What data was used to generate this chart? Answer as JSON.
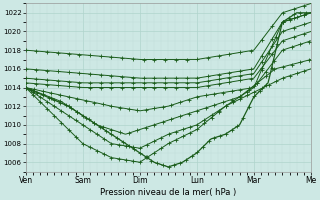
{
  "xlabel": "Pression niveau de la mer( hPa )",
  "ylim": [
    1005,
    1023
  ],
  "yticks": [
    1006,
    1008,
    1010,
    1012,
    1014,
    1016,
    1018,
    1020,
    1022
  ],
  "day_labels": [
    "Ven",
    "Sam",
    "Dim",
    "Lun",
    "Mar",
    "Me"
  ],
  "day_positions": [
    0,
    8,
    16,
    24,
    32,
    40
  ],
  "background_color": "#cde8e4",
  "grid_color_major": "#b0d4cc",
  "grid_color_minor": "#c0ddd8",
  "line_color": "#1a5c1a",
  "lines": [
    {
      "pts_x": [
        0,
        8,
        16,
        24,
        32,
        36,
        40
      ],
      "pts_y": [
        1018,
        1017.5,
        1017,
        1017,
        1018,
        1022,
        1023
      ]
    },
    {
      "pts_x": [
        0,
        8,
        16,
        24,
        32,
        36,
        40
      ],
      "pts_y": [
        1016,
        1015.5,
        1015,
        1015,
        1016,
        1021,
        1022
      ]
    },
    {
      "pts_x": [
        0,
        8,
        16,
        24,
        32,
        36,
        40
      ],
      "pts_y": [
        1015,
        1014.5,
        1014.5,
        1014.5,
        1015.5,
        1020,
        1021
      ]
    },
    {
      "pts_x": [
        0,
        8,
        16,
        24,
        32,
        36,
        40
      ],
      "pts_y": [
        1014.5,
        1014,
        1014,
        1014,
        1015,
        1019,
        1020
      ]
    },
    {
      "pts_x": [
        0,
        6,
        12,
        16,
        20,
        24,
        28,
        32,
        36,
        40
      ],
      "pts_y": [
        1014,
        1013,
        1012,
        1011.5,
        1012,
        1013,
        1013.5,
        1014,
        1018,
        1019
      ]
    },
    {
      "pts_x": [
        0,
        5,
        10,
        14,
        18,
        22,
        26,
        30,
        35,
        40
      ],
      "pts_y": [
        1014,
        1012.5,
        1010,
        1009,
        1010,
        1011,
        1012,
        1013,
        1016,
        1017
      ]
    },
    {
      "pts_x": [
        0,
        4,
        8,
        12,
        16,
        20,
        24,
        28,
        32,
        36,
        40
      ],
      "pts_y": [
        1014,
        1012,
        1010,
        1008,
        1007.5,
        1009,
        1010,
        1012,
        1013.5,
        1015,
        1016
      ]
    },
    {
      "pts_x": [
        0,
        4,
        8,
        12,
        16,
        20,
        24,
        28,
        32,
        36,
        40
      ],
      "pts_y": [
        1014,
        1011,
        1008,
        1006.5,
        1006,
        1008,
        1009.5,
        1012,
        1014,
        1021,
        1022
      ]
    },
    {
      "pts_x": [
        0,
        3,
        6,
        9,
        12,
        15,
        18,
        20,
        22,
        24,
        26,
        28,
        30,
        32,
        34,
        36,
        38,
        40
      ],
      "pts_y": [
        1014,
        1013,
        1012,
        1010.5,
        1009,
        1007.5,
        1006,
        1005.5,
        1006,
        1007,
        1008.5,
        1009,
        1010,
        1013,
        1014.5,
        1021,
        1022,
        1022
      ]
    }
  ],
  "lw": [
    0.7,
    0.7,
    0.7,
    0.7,
    0.7,
    0.7,
    0.7,
    0.7,
    0.9
  ],
  "marker_every": [
    15,
    15,
    15,
    15,
    12,
    12,
    10,
    10,
    8
  ]
}
